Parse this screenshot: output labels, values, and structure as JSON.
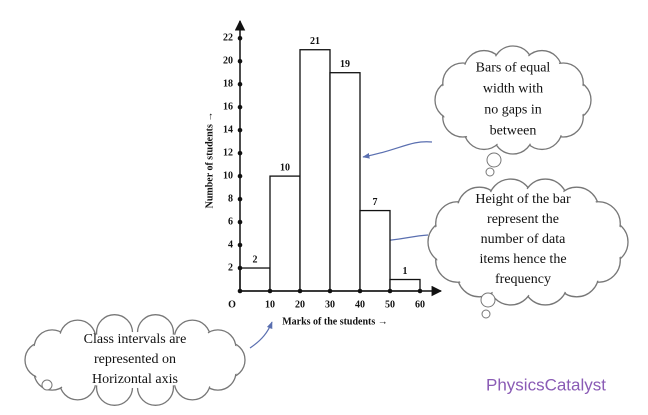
{
  "chart_data": {
    "type": "histogram",
    "bins": [
      0,
      10,
      20,
      30,
      40,
      50,
      60
    ],
    "counts": [
      2,
      10,
      21,
      19,
      7,
      1
    ],
    "xlabel": "Marks of the students →",
    "ylabel": "Number of students →",
    "xlim": [
      0,
      67
    ],
    "ylim": [
      0,
      23.5
    ],
    "xticks": [
      {
        "value": 0,
        "label": "O"
      },
      10,
      20,
      30,
      40,
      50,
      60
    ],
    "yticks": [
      2,
      4,
      6,
      8,
      10,
      12,
      14,
      16,
      18,
      20,
      22
    ],
    "color": "#ffffff",
    "annotations": [
      {
        "lines": [
          "Bars of equal",
          "width with",
          "no gaps in",
          "between"
        ]
      },
      {
        "lines": [
          "Height  of the bar",
          "represent the",
          "number of data",
          "items hence the",
          "frequency"
        ]
      },
      {
        "lines": [
          "Class intervals are",
          "represented on",
          "Horizontal axis"
        ]
      }
    ],
    "watermark": "PhysicsCatalyst"
  }
}
